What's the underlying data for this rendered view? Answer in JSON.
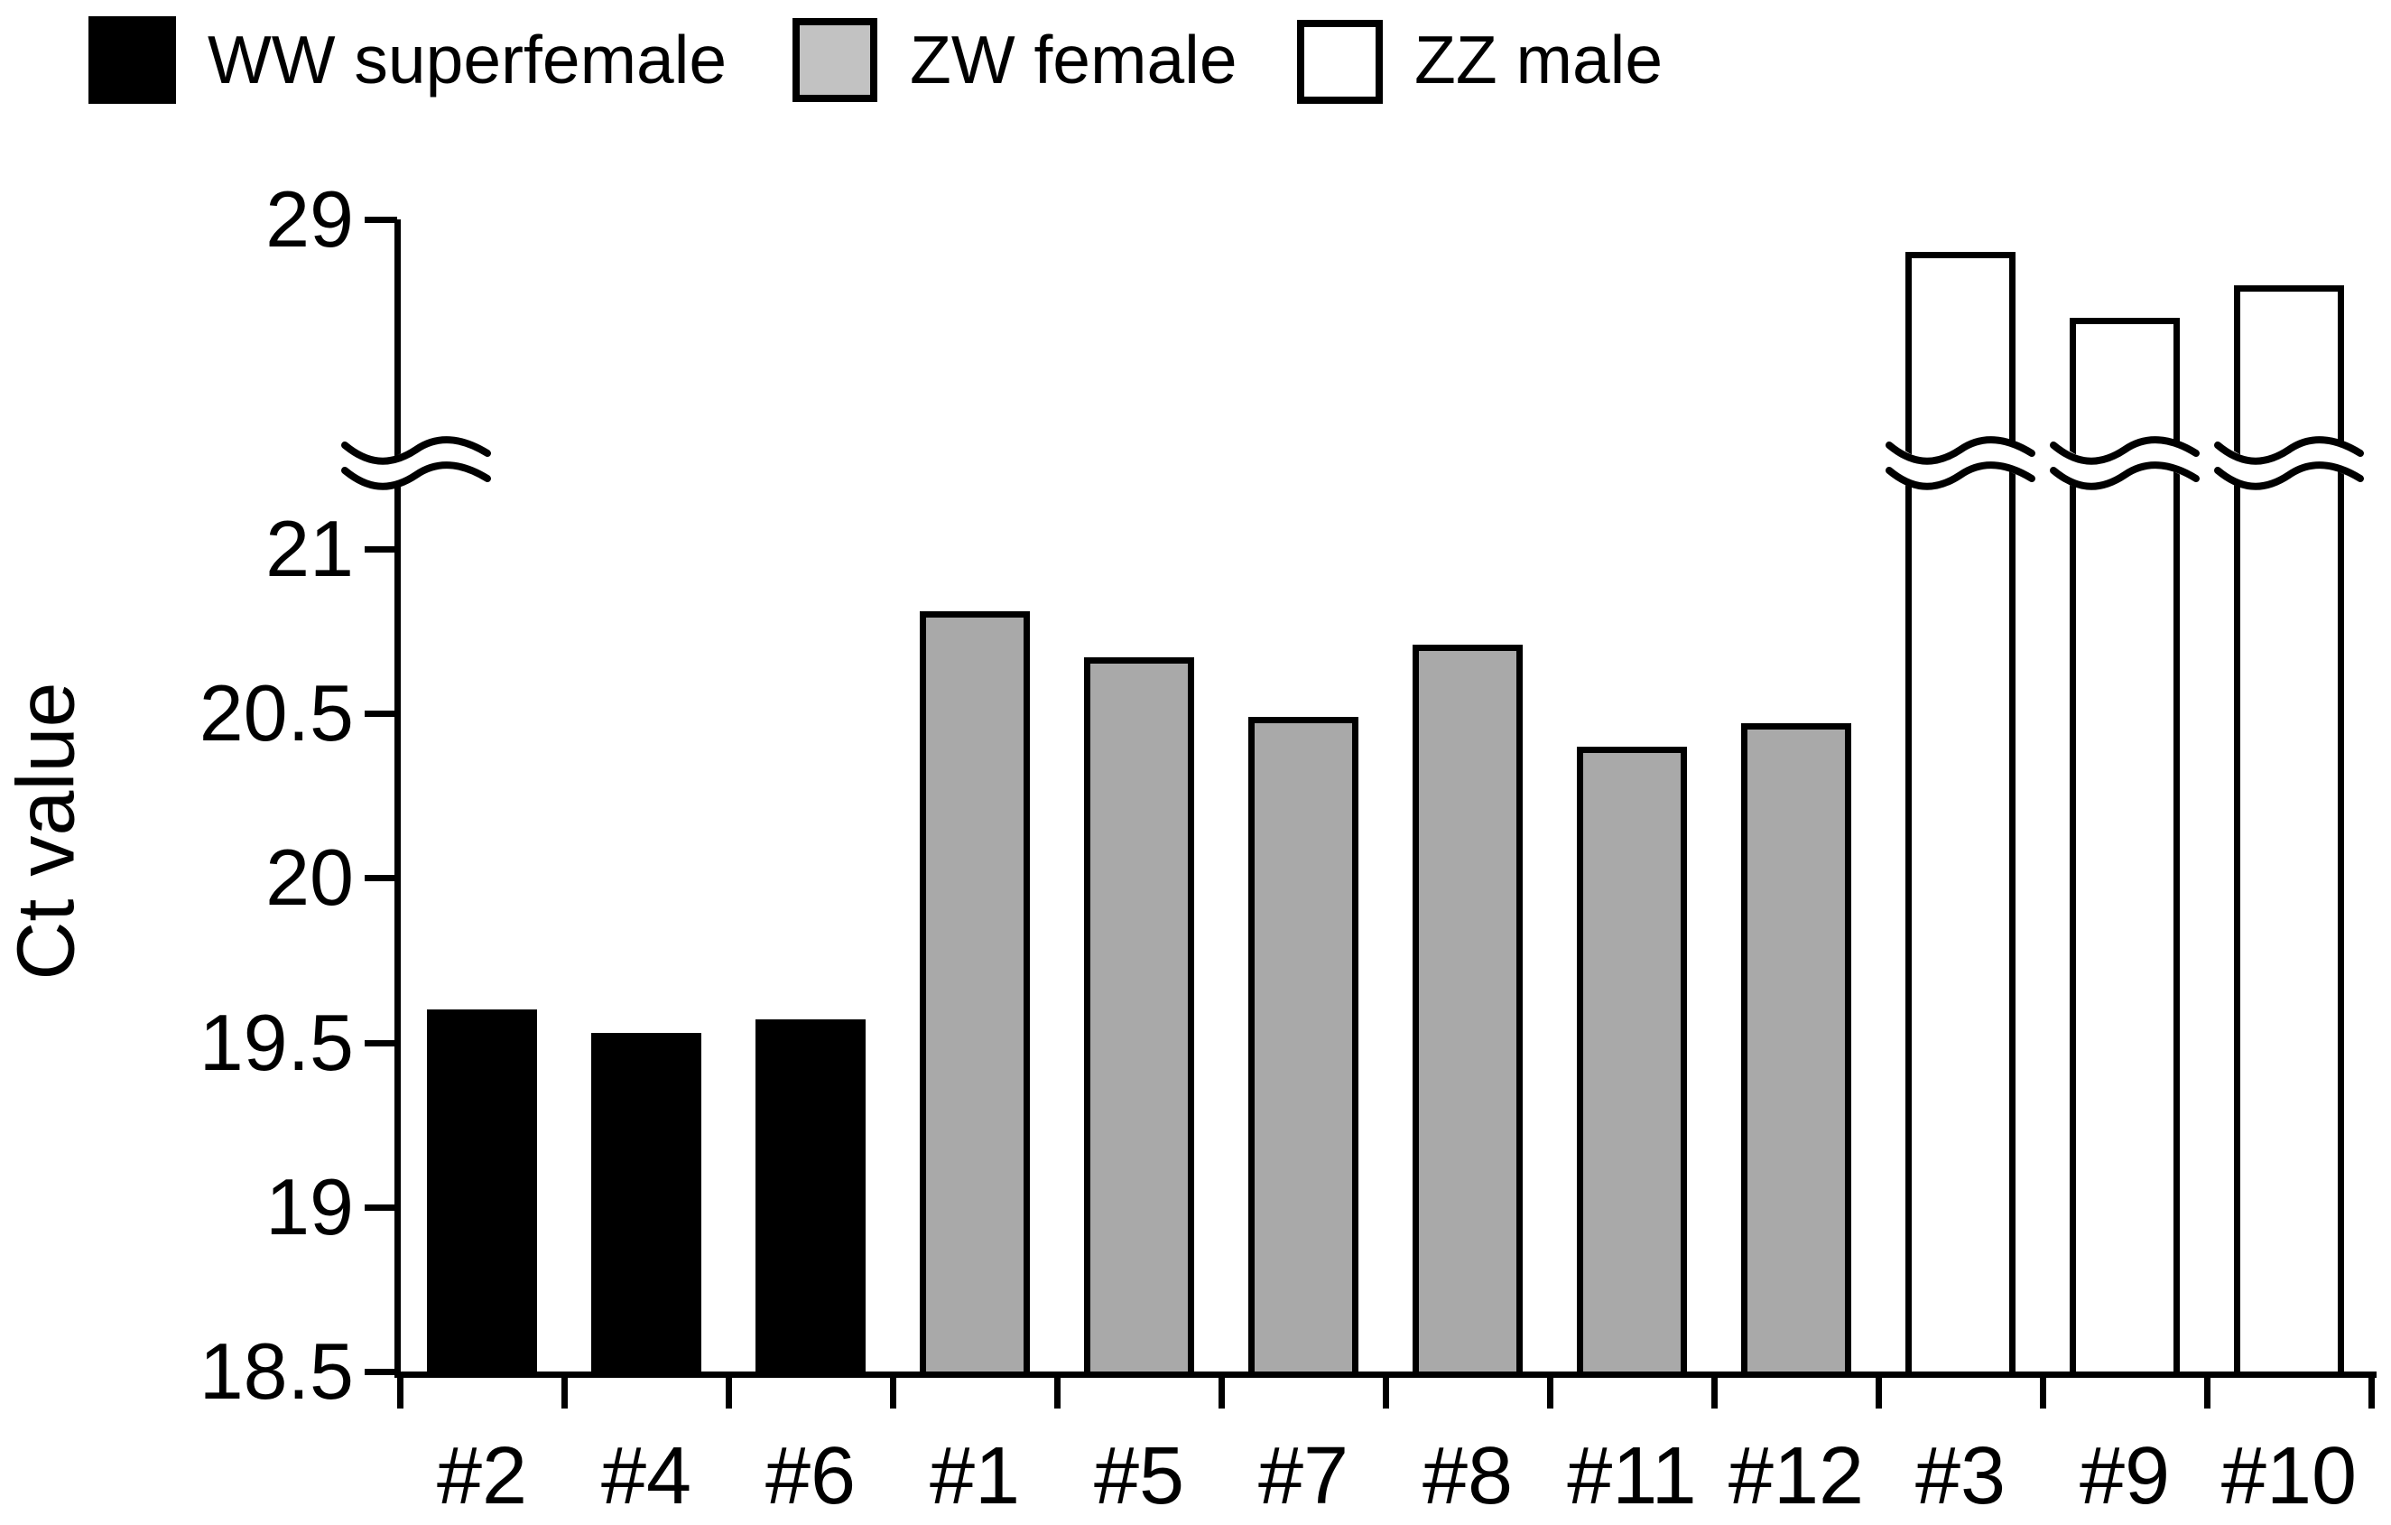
{
  "y_axis_title": "Ct value",
  "legend": {
    "items": [
      {
        "label": "WW superfemale",
        "swatch_fill": "#000000",
        "swatch_border": "#000000"
      },
      {
        "label": "ZW female",
        "swatch_fill": "#C2C2C2",
        "swatch_border": "#000000"
      },
      {
        "label": "ZZ male",
        "swatch_fill": "#FFFFFF",
        "swatch_border": "#000000"
      }
    ]
  },
  "chart_data": {
    "type": "bar",
    "title": "",
    "xlabel": "",
    "ylabel": "Ct value",
    "legend_position": "top",
    "grid": false,
    "y_ticks": [
      {
        "label": "29",
        "value": 29
      },
      {
        "label": "21",
        "value": 21
      },
      {
        "label": "20.5",
        "value": 20.5
      },
      {
        "label": "20",
        "value": 20
      },
      {
        "label": "19.5",
        "value": 19.5
      },
      {
        "label": "19",
        "value": 19
      },
      {
        "label": "18.5",
        "value": 18.5
      }
    ],
    "axis_break": {
      "enabled": true,
      "between_values": [
        21,
        29
      ],
      "style": "double wavy lines across y-axis and tall bars"
    },
    "ylim_lower_segment": [
      18.5,
      21.25
    ],
    "categories": [
      "#2",
      "#4",
      "#6",
      "#1",
      "#5",
      "#7",
      "#8",
      "#11",
      "#12",
      "#3",
      "#9",
      "#10"
    ],
    "bars": [
      {
        "label": "#2",
        "group": "WW superfemale",
        "value": 19.6,
        "broken": false
      },
      {
        "label": "#4",
        "group": "WW superfemale",
        "value": 19.53,
        "broken": false
      },
      {
        "label": "#6",
        "group": "WW superfemale",
        "value": 19.57,
        "broken": false
      },
      {
        "label": "#1",
        "group": "ZW female",
        "value": 20.81,
        "broken": false
      },
      {
        "label": "#5",
        "group": "ZW female",
        "value": 20.67,
        "broken": false
      },
      {
        "label": "#7",
        "group": "ZW female",
        "value": 20.49,
        "broken": false
      },
      {
        "label": "#8",
        "group": "ZW female",
        "value": 20.71,
        "broken": false
      },
      {
        "label": "#11",
        "group": "ZW female",
        "value": 20.4,
        "broken": false
      },
      {
        "label": "#12",
        "group": "ZW female",
        "value": 20.47,
        "broken": false
      },
      {
        "label": "#3",
        "group": "ZZ male",
        "value": 28.9,
        "broken": true
      },
      {
        "label": "#9",
        "group": "ZZ male",
        "value": 28.7,
        "broken": true
      },
      {
        "label": "#10",
        "group": "ZZ male",
        "value": 28.8,
        "broken": true
      }
    ],
    "group_styles": {
      "WW superfemale": {
        "fill": "#000000",
        "border": "#000000",
        "border_width": 0
      },
      "ZW female": {
        "fill": "#A9A9A9",
        "border": "#000000",
        "border_width": 7
      },
      "ZZ male": {
        "fill": "#FFFFFF",
        "border": "#000000",
        "border_width": 7
      }
    }
  }
}
